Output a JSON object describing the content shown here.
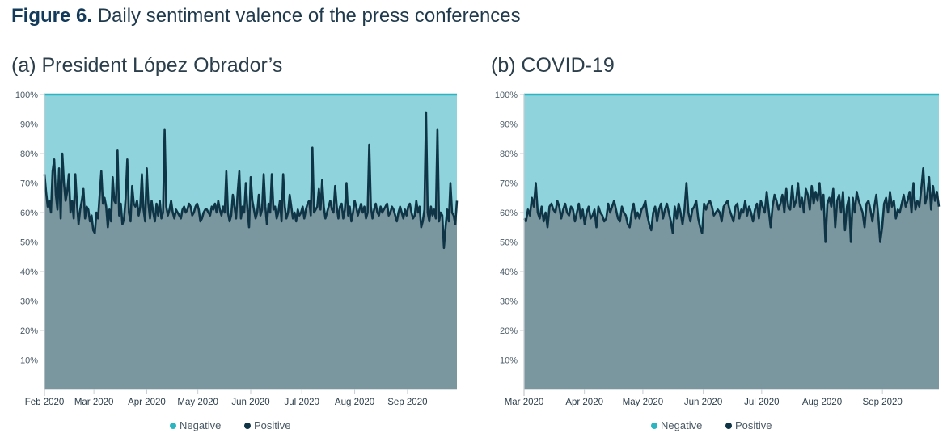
{
  "figure": {
    "title_number": "Figure 6.",
    "title_text": "Daily sentiment valence of the press conferences"
  },
  "colors": {
    "negative_fill": "#8fd3dc",
    "positive_fill": "#7a969f",
    "positive_line": "#0e3445",
    "negative_marker": "#2bb5c1",
    "positive_marker": "#0e3445"
  },
  "chart_data": [
    {
      "type": "area",
      "title": "(a) President López Obrador’s",
      "x_tick_labels": [
        "Feb 2020",
        "Mar 2020",
        "Apr 2020",
        "May 2020",
        "Jun 2020",
        "Jul 2020",
        "Aug 2020",
        "Sep 2020"
      ],
      "y_tick_labels": [
        "10%",
        "20%",
        "30%",
        "40%",
        "50%",
        "60%",
        "70%",
        "80%",
        "90%",
        "100%"
      ],
      "ylim": [
        0,
        100
      ],
      "x_range": [
        "2020-02-01",
        "2020-09-30"
      ],
      "stacked": true,
      "series": [
        {
          "name": "Negative",
          "note_color_key": "negative_marker"
        },
        {
          "name": "Positive",
          "start_date": "2020-02-01",
          "frequency": "daily",
          "values": [
            73,
            67,
            62,
            64,
            60,
            74,
            78,
            66,
            61,
            75,
            58,
            80,
            70,
            64,
            67,
            73,
            60,
            64,
            58,
            73,
            63,
            56,
            61,
            64,
            68,
            58,
            62,
            61,
            57,
            59,
            54,
            53,
            60,
            58,
            66,
            74,
            63,
            65,
            62,
            55,
            61,
            57,
            72,
            64,
            63,
            81,
            59,
            63,
            56,
            58,
            65,
            78,
            60,
            57,
            69,
            63,
            62,
            64,
            59,
            62,
            73,
            61,
            57,
            75,
            63,
            58,
            64,
            60,
            57,
            63,
            59,
            64,
            58,
            60,
            88,
            62,
            59,
            61,
            64,
            60,
            58,
            61,
            60,
            59,
            58,
            61,
            62,
            60,
            61,
            63,
            62,
            59,
            60,
            62,
            63,
            61,
            57,
            58,
            60,
            61,
            61,
            60,
            59,
            62,
            61,
            63,
            60,
            64,
            61,
            59,
            62,
            60,
            74,
            60,
            57,
            59,
            66,
            62,
            58,
            67,
            74,
            58,
            62,
            60,
            70,
            61,
            55,
            72,
            64,
            61,
            58,
            60,
            66,
            59,
            61,
            73,
            62,
            56,
            63,
            60,
            73,
            61,
            62,
            58,
            60,
            64,
            57,
            73,
            62,
            58,
            60,
            66,
            62,
            58,
            60,
            57,
            61,
            59,
            60,
            62,
            58,
            61,
            63,
            64,
            59,
            82,
            60,
            61,
            62,
            68,
            61,
            71,
            62,
            58,
            60,
            62,
            64,
            61,
            60,
            69,
            62,
            58,
            62,
            63,
            58,
            61,
            70,
            59,
            62,
            57,
            60,
            64,
            62,
            59,
            61,
            63,
            60,
            62,
            58,
            60,
            83,
            62,
            58,
            61,
            63,
            60,
            59,
            62,
            60,
            61,
            62,
            63,
            59,
            60,
            62,
            61,
            59,
            57,
            60,
            62,
            60,
            58,
            61,
            59,
            62,
            63,
            60,
            58,
            59,
            64,
            60,
            62,
            55,
            57,
            61,
            94,
            60,
            57,
            62,
            59,
            61,
            58,
            88,
            57,
            60,
            59,
            48,
            55,
            61,
            57,
            70,
            60,
            59,
            56,
            64
          ]
        }
      ],
      "legend": [
        "Negative",
        "Positive"
      ],
      "legend_position": "bottom"
    },
    {
      "type": "area",
      "title": "(b) COVID-19",
      "x_tick_labels": [
        "Mar 2020",
        "Apr 2020",
        "May 2020",
        "Jun 2020",
        "Jul 2020",
        "Aug 2020",
        "Sep 2020"
      ],
      "y_tick_labels": [
        "10%",
        "20%",
        "30%",
        "40%",
        "50%",
        "60%",
        "70%",
        "80%",
        "90%",
        "100%"
      ],
      "ylim": [
        0,
        100
      ],
      "x_range": [
        "2020-03-01",
        "2020-09-30"
      ],
      "stacked": true,
      "series": [
        {
          "name": "Negative",
          "note_color_key": "negative_marker"
        },
        {
          "name": "Positive",
          "start_date": "2020-03-01",
          "frequency": "daily",
          "values": [
            58,
            57,
            61,
            59,
            65,
            62,
            70,
            60,
            58,
            62,
            57,
            60,
            55,
            62,
            63,
            61,
            60,
            64,
            62,
            58,
            61,
            63,
            60,
            59,
            62,
            61,
            57,
            60,
            63,
            58,
            61,
            56,
            60,
            62,
            58,
            59,
            61,
            55,
            62,
            60,
            59,
            57,
            58,
            63,
            60,
            62,
            64,
            61,
            58,
            57,
            62,
            60,
            59,
            56,
            55,
            60,
            63,
            58,
            60,
            58,
            61,
            62,
            64,
            59,
            56,
            54,
            60,
            62,
            57,
            61,
            63,
            58,
            61,
            63,
            60,
            57,
            53,
            62,
            58,
            63,
            60,
            56,
            61,
            70,
            60,
            57,
            61,
            62,
            64,
            58,
            55,
            53,
            63,
            61,
            63,
            64,
            62,
            59,
            60,
            61,
            60,
            57,
            62,
            63,
            64,
            61,
            59,
            57,
            62,
            63,
            58,
            61,
            60,
            64,
            59,
            62,
            60,
            57,
            61,
            63,
            58,
            64,
            62,
            60,
            67,
            61,
            55,
            62,
            66,
            64,
            61,
            63,
            66,
            60,
            68,
            62,
            61,
            69,
            62,
            64,
            70,
            62,
            65,
            60,
            68,
            66,
            61,
            69,
            63,
            67,
            64,
            70,
            61,
            66,
            50,
            63,
            65,
            62,
            68,
            55,
            64,
            66,
            60,
            67,
            54,
            62,
            65,
            50,
            65,
            60,
            67,
            64,
            62,
            60,
            55,
            63,
            64,
            61,
            57,
            62,
            66,
            59,
            50,
            55,
            63,
            65,
            60,
            67,
            62,
            64,
            58,
            61,
            60,
            63,
            66,
            62,
            64,
            67,
            60,
            70,
            61,
            64,
            62,
            68,
            75,
            63,
            66,
            72,
            61,
            69,
            64,
            67,
            62
          ]
        }
      ],
      "legend": [
        "Negative",
        "Positive"
      ],
      "legend_position": "bottom"
    }
  ]
}
